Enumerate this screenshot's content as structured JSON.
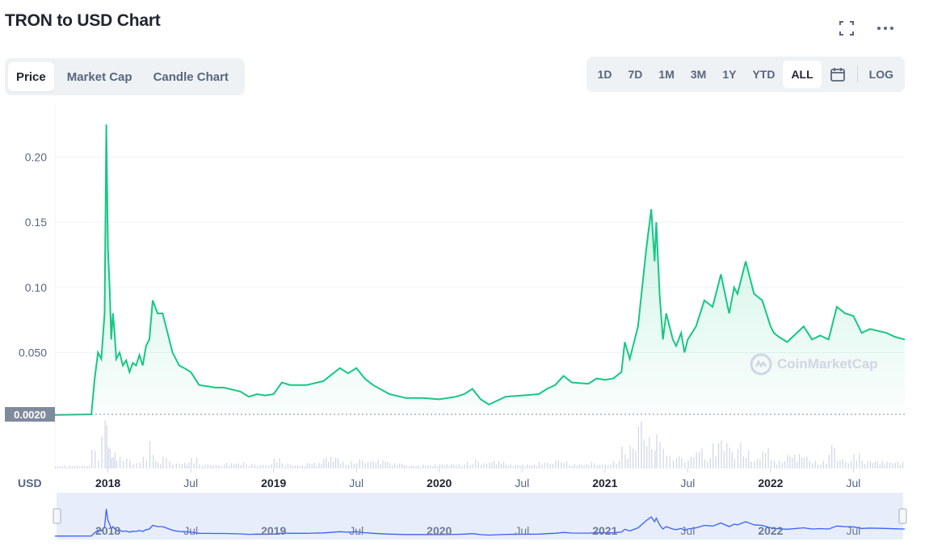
{
  "header": {
    "title": "TRON to USD Chart",
    "fullscreen_icon": "fullscreen-icon",
    "more_icon": "more-horizontal-icon"
  },
  "tabs": [
    {
      "label": "Price",
      "active": true
    },
    {
      "label": "Market Cap",
      "active": false
    },
    {
      "label": "Candle Chart",
      "active": false
    }
  ],
  "ranges": [
    {
      "label": "1D",
      "active": false
    },
    {
      "label": "7D",
      "active": false
    },
    {
      "label": "1M",
      "active": false
    },
    {
      "label": "3M",
      "active": false
    },
    {
      "label": "1Y",
      "active": false
    },
    {
      "label": "YTD",
      "active": false
    },
    {
      "label": "ALL",
      "active": true
    }
  ],
  "calendar_icon": "calendar-icon",
  "log_label": "LOG",
  "currency_label": "USD",
  "current_price_label": "0.0020",
  "watermark": "CoinMarketCap",
  "colors": {
    "line": "#16c784",
    "area": "#16c784",
    "volume": "#cfd6e4",
    "nav_line": "#3861fb",
    "nav_bg": "#e8edfb"
  },
  "chart_data": {
    "type": "area",
    "title": "TRON to USD Chart",
    "ylabel": "USD",
    "ylim": [
      0,
      0.24
    ],
    "yticks": [
      "0.050",
      "0.10",
      "0.15",
      "0.20"
    ],
    "ytick_values": [
      0.05,
      0.1,
      0.15,
      0.2
    ],
    "xticks": [
      {
        "label": "2018",
        "t": 2018.0,
        "bold": true
      },
      {
        "label": "Jul",
        "t": 2018.5,
        "bold": false
      },
      {
        "label": "2019",
        "t": 2019.0,
        "bold": true
      },
      {
        "label": "Jul",
        "t": 2019.5,
        "bold": false
      },
      {
        "label": "2020",
        "t": 2020.0,
        "bold": true
      },
      {
        "label": "Jul",
        "t": 2020.5,
        "bold": false
      },
      {
        "label": "2021",
        "t": 2021.0,
        "bold": true
      },
      {
        "label": "Jul",
        "t": 2021.5,
        "bold": false
      },
      {
        "label": "2022",
        "t": 2022.0,
        "bold": true
      },
      {
        "label": "Jul",
        "t": 2022.5,
        "bold": false
      }
    ],
    "xlim": [
      2017.68,
      2022.81
    ],
    "x": [
      2017.68,
      2017.9,
      2017.92,
      2017.94,
      2017.96,
      2017.98,
      2017.99,
      2018.0,
      2018.01,
      2018.02,
      2018.03,
      2018.04,
      2018.05,
      2018.07,
      2018.09,
      2018.11,
      2018.13,
      2018.15,
      2018.17,
      2018.19,
      2018.21,
      2018.23,
      2018.25,
      2018.27,
      2018.3,
      2018.33,
      2018.35,
      2018.37,
      2018.39,
      2018.41,
      2018.43,
      2018.46,
      2018.5,
      2018.55,
      2018.6,
      2018.65,
      2018.7,
      2018.8,
      2018.85,
      2018.9,
      2018.95,
      2019.0,
      2019.05,
      2019.1,
      2019.2,
      2019.3,
      2019.4,
      2019.45,
      2019.5,
      2019.55,
      2019.6,
      2019.7,
      2019.8,
      2019.9,
      2020.0,
      2020.1,
      2020.15,
      2020.2,
      2020.25,
      2020.3,
      2020.4,
      2020.5,
      2020.6,
      2020.65,
      2020.7,
      2020.75,
      2020.8,
      2020.9,
      2020.95,
      2021.0,
      2021.05,
      2021.1,
      2021.12,
      2021.15,
      2021.2,
      2021.25,
      2021.28,
      2021.3,
      2021.31,
      2021.33,
      2021.35,
      2021.37,
      2021.39,
      2021.41,
      2021.43,
      2021.46,
      2021.48,
      2021.5,
      2021.55,
      2021.6,
      2021.65,
      2021.7,
      2021.75,
      2021.78,
      2021.8,
      2021.85,
      2021.88,
      2021.9,
      2021.95,
      2022.0,
      2022.02,
      2022.05,
      2022.1,
      2022.2,
      2022.25,
      2022.3,
      2022.35,
      2022.4,
      2022.45,
      2022.5,
      2022.55,
      2022.6,
      2022.7,
      2022.75,
      2022.81
    ],
    "y": [
      0.002,
      0.0025,
      0.03,
      0.05,
      0.045,
      0.08,
      0.225,
      0.13,
      0.1,
      0.06,
      0.08,
      0.065,
      0.045,
      0.05,
      0.04,
      0.044,
      0.035,
      0.042,
      0.04,
      0.048,
      0.04,
      0.055,
      0.06,
      0.09,
      0.08,
      0.08,
      0.07,
      0.06,
      0.05,
      0.045,
      0.04,
      0.038,
      0.035,
      0.025,
      0.024,
      0.023,
      0.023,
      0.02,
      0.016,
      0.018,
      0.017,
      0.018,
      0.027,
      0.025,
      0.025,
      0.028,
      0.038,
      0.034,
      0.038,
      0.03,
      0.025,
      0.018,
      0.015,
      0.015,
      0.014,
      0.016,
      0.018,
      0.022,
      0.014,
      0.01,
      0.016,
      0.017,
      0.018,
      0.022,
      0.025,
      0.032,
      0.027,
      0.026,
      0.03,
      0.029,
      0.03,
      0.035,
      0.058,
      0.045,
      0.07,
      0.13,
      0.16,
      0.12,
      0.15,
      0.095,
      0.06,
      0.08,
      0.07,
      0.06,
      0.055,
      0.065,
      0.05,
      0.06,
      0.07,
      0.09,
      0.085,
      0.11,
      0.08,
      0.1,
      0.095,
      0.12,
      0.105,
      0.095,
      0.09,
      0.07,
      0.065,
      0.062,
      0.058,
      0.07,
      0.06,
      0.063,
      0.06,
      0.085,
      0.08,
      0.078,
      0.065,
      0.068,
      0.065,
      0.062,
      0.06
    ]
  }
}
